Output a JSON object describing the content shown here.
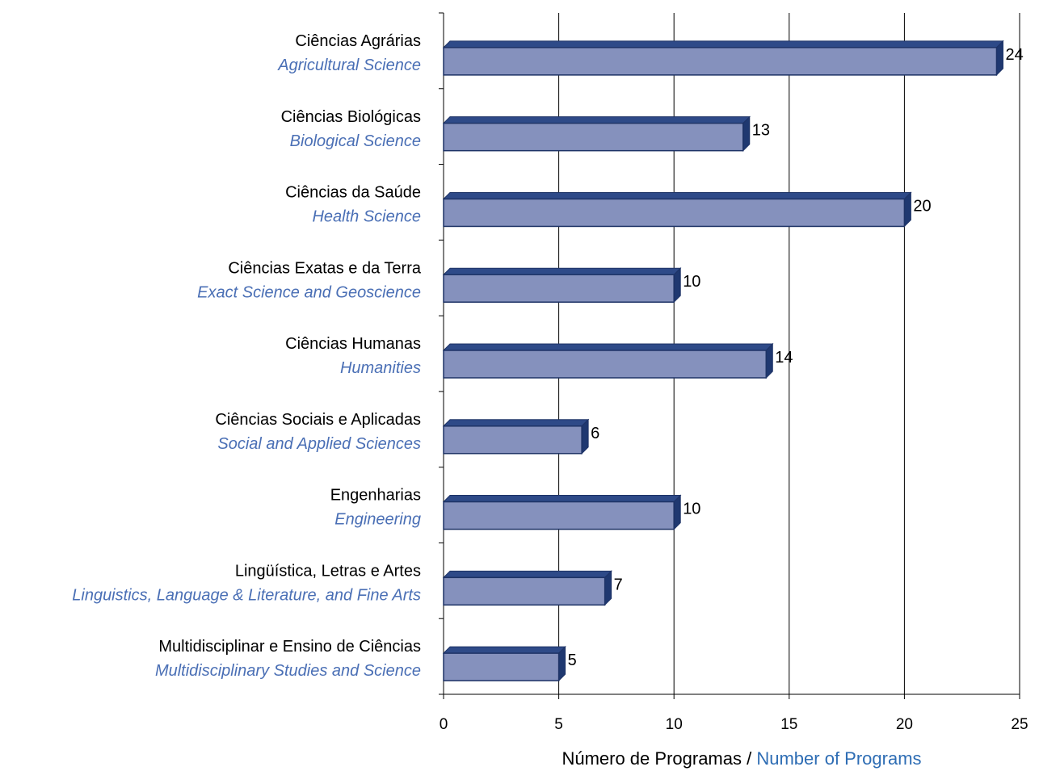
{
  "colors": {
    "bar_face": "#8591BD",
    "bar_top": "#2E4A88",
    "bar_side": "#1F3870",
    "bar_outline": "#1E3366",
    "grid": "#000000",
    "english_text": "#4A6FB5",
    "axis_title_english": "#2E6DB4"
  },
  "chart_data": {
    "type": "bar",
    "orientation": "horizontal",
    "categories": [
      {
        "pt": "Ciências Agrárias",
        "en": "Agricultural Science"
      },
      {
        "pt": "Ciências Biológicas",
        "en": "Biological Science"
      },
      {
        "pt": "Ciências da Saúde",
        "en": "Health Science"
      },
      {
        "pt": "Ciências Exatas e da Terra",
        "en": "Exact Science and Geoscience"
      },
      {
        "pt": "Ciências Humanas",
        "en": "Humanities"
      },
      {
        "pt": "Ciências Sociais e Aplicadas",
        "en": "Social and Applied Sciences"
      },
      {
        "pt": "Engenharias",
        "en": "Engineering"
      },
      {
        "pt": "Lingüística, Letras e Artes",
        "en": "Linguistics, Language & Literature, and Fine Arts"
      },
      {
        "pt": "Multidisciplinar e Ensino de Ciências",
        "en": "Multidisciplinary Studies and Science"
      }
    ],
    "values": [
      24,
      13,
      20,
      10,
      14,
      6,
      10,
      7,
      5
    ],
    "value_labels": [
      "24",
      "13",
      "20",
      "10",
      "14",
      "6",
      "10",
      "7",
      "5"
    ],
    "xlim": [
      0,
      25
    ],
    "xticks": [
      0,
      5,
      10,
      15,
      20,
      25
    ],
    "xlabel_pt": "Número de Programas /",
    "xlabel_en": "Number of Programs",
    "grid": "vertical"
  }
}
